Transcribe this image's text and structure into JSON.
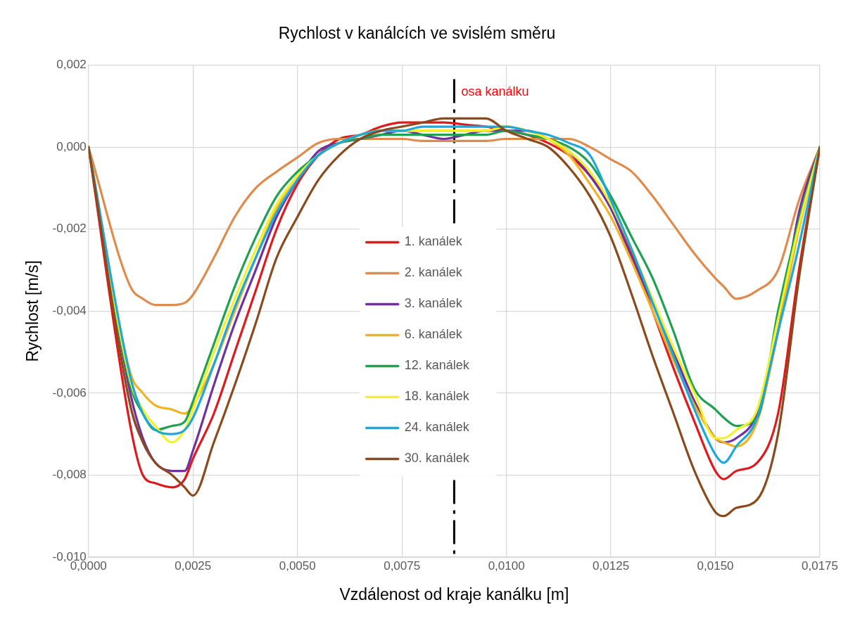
{
  "chart_data": {
    "type": "line",
    "title": "Rychlost v kanálcích ve svislém směru",
    "xlabel": "Vzdálenost od kraje kanálku [m]",
    "ylabel": "Rychlost [m/s]",
    "x": [
      0,
      0.001,
      0.0013,
      0.0016,
      0.002,
      0.0023,
      0.0025,
      0.003,
      0.0035,
      0.004,
      0.0045,
      0.005,
      0.0055,
      0.006,
      0.0065,
      0.007,
      0.0075,
      0.008,
      0.0085,
      0.009,
      0.0095,
      0.01,
      0.0105,
      0.011,
      0.0115,
      0.012,
      0.0125,
      0.013,
      0.0135,
      0.014,
      0.0145,
      0.015,
      0.0152,
      0.0155,
      0.016,
      0.0165,
      0.017,
      0.0175
    ],
    "series": [
      {
        "name": "1. kanálek",
        "color": "#e0191f",
        "values": [
          0,
          -0.0068,
          -0.008,
          -0.0082,
          -0.0083,
          -0.0081,
          -0.0076,
          -0.0065,
          -0.005,
          -0.0035,
          -0.002,
          -0.0009,
          -0.0002,
          0.0002,
          0.0003,
          0.0005,
          0.0006,
          0.0006,
          0.0006,
          0.00055,
          0.0005,
          0.0004,
          0.0003,
          0.0001,
          -0.0002,
          -0.0007,
          -0.0014,
          -0.0026,
          -0.004,
          -0.0054,
          -0.0067,
          -0.0079,
          -0.0081,
          -0.0079,
          -0.0077,
          -0.0065,
          -0.003,
          0
        ]
      },
      {
        "name": "2. kanálek",
        "color": "#e08b4c",
        "values": [
          0,
          -0.0034,
          -0.0037,
          -0.00385,
          -0.00385,
          -0.0038,
          -0.0036,
          -0.0027,
          -0.0017,
          -0.001,
          -0.0006,
          -0.00025,
          0.0001,
          0.0002,
          0.0002,
          0.0002,
          0.0002,
          0.00015,
          0.00015,
          0.00015,
          0.00015,
          0.0002,
          0.0002,
          0.0002,
          0.0002,
          0,
          -0.0003,
          -0.0006,
          -0.0012,
          -0.0019,
          -0.0026,
          -0.0032,
          -0.0034,
          -0.0037,
          -0.0035,
          -0.003,
          -0.0013,
          0
        ]
      },
      {
        "name": "3. kanálek",
        "color": "#7030a0",
        "values": [
          0,
          -0.006,
          -0.0071,
          -0.0077,
          -0.0079,
          -0.0079,
          -0.0074,
          -0.0058,
          -0.0043,
          -0.003,
          -0.0017,
          -0.0008,
          -0.0001,
          0.0001,
          0.0002,
          0.0003,
          0.0004,
          0.0003,
          0.0002,
          0.0003,
          0.0004,
          0.0004,
          0.0004,
          0.0002,
          -0.0001,
          -0.0007,
          -0.0015,
          -0.0027,
          -0.0038,
          -0.005,
          -0.0062,
          -0.0071,
          -0.0072,
          -0.0071,
          -0.0065,
          -0.0045,
          -0.0016,
          0
        ]
      },
      {
        "name": "6. kanálek",
        "color": "#f0b323",
        "values": [
          0,
          -0.0055,
          -0.006,
          -0.0063,
          -0.0064,
          -0.0065,
          -0.0063,
          -0.0053,
          -0.004,
          -0.0027,
          -0.0015,
          -0.0007,
          -0.0002,
          0.0001,
          0.0003,
          0.0004,
          0.0004,
          0.0004,
          0.0004,
          0.0004,
          0.0004,
          0.0005,
          0.0004,
          0.0002,
          -0.0002,
          -0.0009,
          -0.0017,
          -0.0028,
          -0.004,
          -0.0052,
          -0.0063,
          -0.0071,
          -0.0072,
          -0.0073,
          -0.0067,
          -0.0045,
          -0.002,
          0
        ]
      },
      {
        "name": "12. kanálek",
        "color": "#1fa052",
        "values": [
          0,
          -0.0058,
          -0.0065,
          -0.0069,
          -0.0068,
          -0.0067,
          -0.0062,
          -0.0048,
          -0.0034,
          -0.0022,
          -0.0012,
          -0.0006,
          -0.0002,
          0.0001,
          0.0002,
          0.0003,
          0.0003,
          0.0003,
          0.0003,
          0.0003,
          0.0003,
          0.0004,
          0.0003,
          0.0002,
          0,
          -0.0004,
          -0.0012,
          -0.0022,
          -0.0032,
          -0.0045,
          -0.0059,
          -0.0064,
          -0.0066,
          -0.0068,
          -0.0066,
          -0.004,
          -0.0018,
          0
        ]
      },
      {
        "name": "18. kanálek",
        "color": "#f2f22a",
        "values": [
          0,
          -0.0057,
          -0.0064,
          -0.0068,
          -0.0072,
          -0.0069,
          -0.0064,
          -0.005,
          -0.0037,
          -0.0025,
          -0.0014,
          -0.0007,
          -0.0002,
          0.0001,
          0.0003,
          0.0004,
          0.0004,
          0.0004,
          0.0004,
          0.0004,
          0.0004,
          0.0005,
          0.0004,
          0.0002,
          -0.0001,
          -0.0006,
          -0.0014,
          -0.0025,
          -0.0037,
          -0.0049,
          -0.006,
          -0.0071,
          -0.0071,
          -0.0069,
          -0.0064,
          -0.0042,
          -0.0019,
          0
        ]
      },
      {
        "name": "24. kanálek",
        "color": "#1ca8d8",
        "values": [
          0,
          -0.0056,
          -0.0065,
          -0.0069,
          -0.007,
          -0.0069,
          -0.0066,
          -0.0053,
          -0.0039,
          -0.0027,
          -0.0016,
          -0.0008,
          -0.0002,
          0.0001,
          0.0003,
          0.0004,
          0.0004,
          0.0005,
          0.0005,
          0.0005,
          0.0005,
          0.0005,
          0.0004,
          0.0003,
          0.0001,
          -0.0002,
          -0.0013,
          -0.0025,
          -0.0038,
          -0.0051,
          -0.0064,
          -0.0075,
          -0.0077,
          -0.0073,
          -0.0066,
          -0.0045,
          -0.0024,
          0
        ]
      },
      {
        "name": "30. kanálek",
        "color": "#8b4a1c",
        "values": [
          0,
          -0.0063,
          -0.0072,
          -0.0077,
          -0.008,
          -0.0083,
          -0.0085,
          -0.0072,
          -0.0058,
          -0.0043,
          -0.0027,
          -0.0017,
          -0.0008,
          -0.0002,
          0.0002,
          0.0004,
          0.0005,
          0.0006,
          0.0007,
          0.0007,
          0.0007,
          0.0004,
          0.0002,
          0,
          -0.0005,
          -0.0012,
          -0.0022,
          -0.0036,
          -0.0051,
          -0.0065,
          -0.0079,
          -0.0089,
          -0.009,
          -0.0088,
          -0.0086,
          -0.007,
          -0.0032,
          0
        ]
      }
    ],
    "xlim": [
      0,
      0.0175
    ],
    "xticks": [
      {
        "value": 0,
        "label": "0,0000"
      },
      {
        "value": 0.0025,
        "label": "0,0025"
      },
      {
        "value": 0.005,
        "label": "0,0050"
      },
      {
        "value": 0.0075,
        "label": "0,0075"
      },
      {
        "value": 0.01,
        "label": "0,0100"
      },
      {
        "value": 0.0125,
        "label": "0,0125"
      },
      {
        "value": 0.015,
        "label": "0,0150"
      },
      {
        "value": 0.0175,
        "label": "0,0175"
      }
    ],
    "ylim": [
      -0.01,
      0.002
    ],
    "yticks": [
      {
        "value": -0.01,
        "label": "-0,010"
      },
      {
        "value": -0.008,
        "label": "-0,008"
      },
      {
        "value": -0.006,
        "label": "-0,006"
      },
      {
        "value": -0.004,
        "label": "-0,004"
      },
      {
        "value": -0.002,
        "label": "-0,002"
      },
      {
        "value": 0,
        "label": "0,000"
      },
      {
        "value": 0.002,
        "label": "0,002"
      }
    ],
    "ref_lines": [
      {
        "axis": "x",
        "value": 0.00875,
        "label": "osa kanálku",
        "color": "#000000",
        "line_style": "dashed"
      }
    ],
    "grid": true,
    "legend": "center",
    "marker": "none",
    "line_style": "solid"
  }
}
